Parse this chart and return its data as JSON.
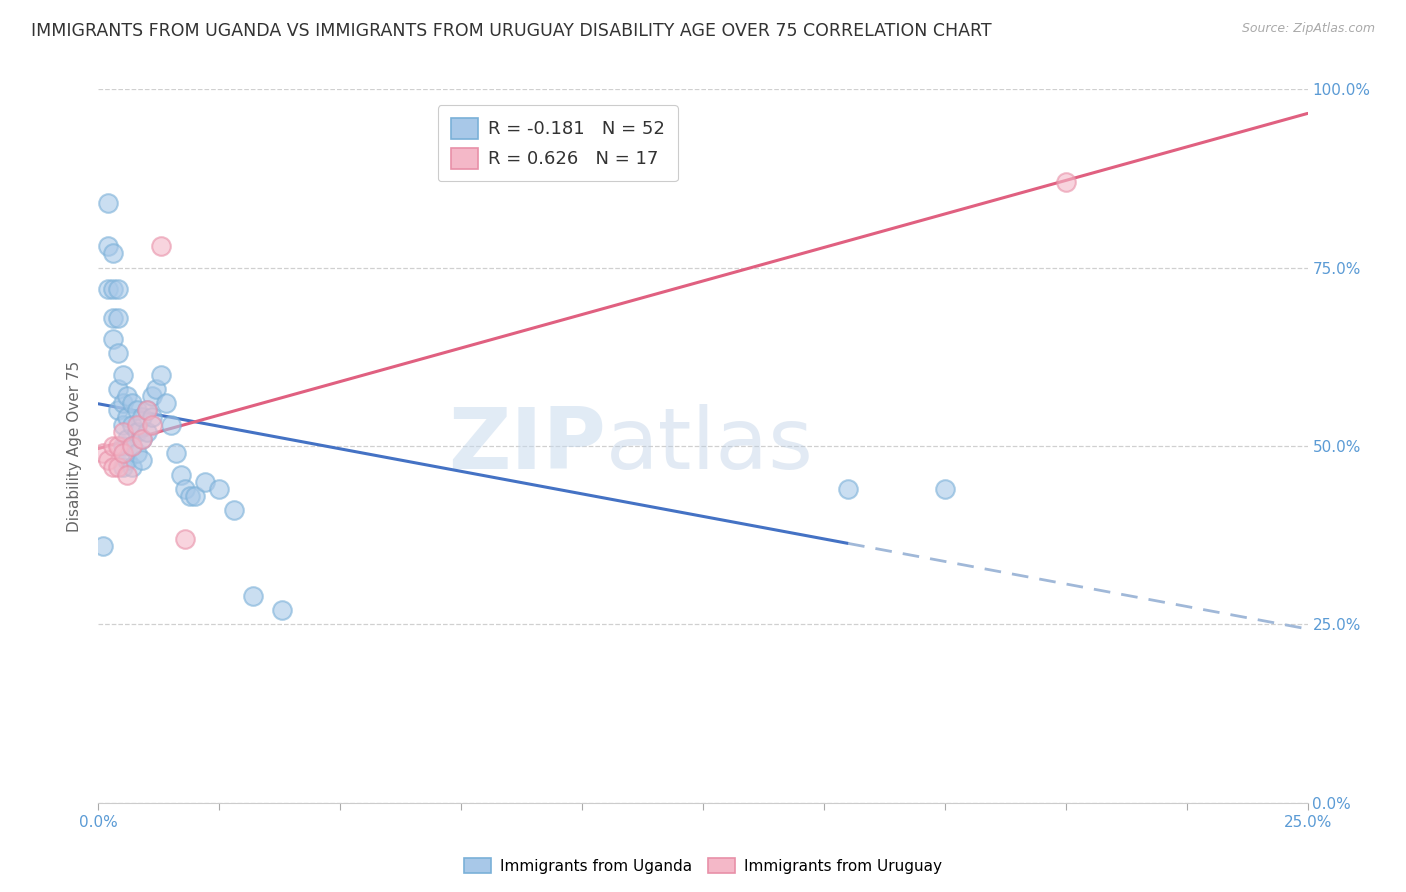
{
  "title": "IMMIGRANTS FROM UGANDA VS IMMIGRANTS FROM URUGUAY DISABILITY AGE OVER 75 CORRELATION CHART",
  "source": "Source: ZipAtlas.com",
  "ylabel": "Disability Age Over 75",
  "xlim": [
    0.0,
    0.25
  ],
  "ylim": [
    0.0,
    1.0
  ],
  "xticks": [
    0.0,
    0.025,
    0.05,
    0.075,
    0.1,
    0.125,
    0.15,
    0.175,
    0.2,
    0.225,
    0.25
  ],
  "yticks": [
    0.0,
    0.25,
    0.5,
    0.75,
    1.0
  ],
  "ytick_labels": [
    "0.0%",
    "25.0%",
    "50.0%",
    "75.0%",
    "100.0%"
  ],
  "uganda_color": "#a8c8e8",
  "uganda_edge_color": "#7ab0d8",
  "uruguay_color": "#f4b8c8",
  "uruguay_edge_color": "#e890a8",
  "uganda_label": "Immigrants from Uganda",
  "uruguay_label": "Immigrants from Uruguay",
  "legend_R_uganda": "R = -0.181",
  "legend_N_uganda": "N = 52",
  "legend_R_uruguay": "R = 0.626",
  "legend_N_uruguay": "N = 17",
  "uganda_x": [
    0.001,
    0.002,
    0.002,
    0.002,
    0.003,
    0.003,
    0.003,
    0.003,
    0.004,
    0.004,
    0.004,
    0.004,
    0.004,
    0.005,
    0.005,
    0.005,
    0.005,
    0.005,
    0.006,
    0.006,
    0.006,
    0.006,
    0.007,
    0.007,
    0.007,
    0.007,
    0.008,
    0.008,
    0.008,
    0.009,
    0.009,
    0.009,
    0.01,
    0.01,
    0.011,
    0.011,
    0.012,
    0.013,
    0.014,
    0.015,
    0.016,
    0.017,
    0.018,
    0.019,
    0.02,
    0.022,
    0.025,
    0.028,
    0.032,
    0.038,
    0.155,
    0.175
  ],
  "uganda_y": [
    0.36,
    0.84,
    0.78,
    0.72,
    0.77,
    0.72,
    0.68,
    0.65,
    0.72,
    0.68,
    0.63,
    0.58,
    0.55,
    0.6,
    0.56,
    0.53,
    0.5,
    0.47,
    0.57,
    0.54,
    0.51,
    0.48,
    0.56,
    0.53,
    0.5,
    0.47,
    0.55,
    0.52,
    0.49,
    0.54,
    0.51,
    0.48,
    0.55,
    0.52,
    0.57,
    0.54,
    0.58,
    0.6,
    0.56,
    0.53,
    0.49,
    0.46,
    0.44,
    0.43,
    0.43,
    0.45,
    0.44,
    0.41,
    0.29,
    0.27,
    0.44,
    0.44
  ],
  "uruguay_x": [
    0.001,
    0.002,
    0.003,
    0.003,
    0.004,
    0.004,
    0.005,
    0.005,
    0.006,
    0.007,
    0.008,
    0.009,
    0.01,
    0.011,
    0.013,
    0.018,
    0.2
  ],
  "uruguay_y": [
    0.49,
    0.48,
    0.5,
    0.47,
    0.5,
    0.47,
    0.52,
    0.49,
    0.46,
    0.5,
    0.53,
    0.51,
    0.55,
    0.53,
    0.78,
    0.37,
    0.87
  ],
  "watermark_zip": "ZIP",
  "watermark_atlas": "atlas",
  "background_color": "#ffffff",
  "grid_color": "#d0d0d0",
  "tick_color": "#5b9bd5",
  "title_fontsize": 12.5,
  "axis_label_fontsize": 11,
  "tick_fontsize": 11,
  "legend_fontsize": 13,
  "trend_blue_solid": "#4472c4",
  "trend_blue_dashed": "#a0b8d8",
  "trend_pink": "#e06080"
}
